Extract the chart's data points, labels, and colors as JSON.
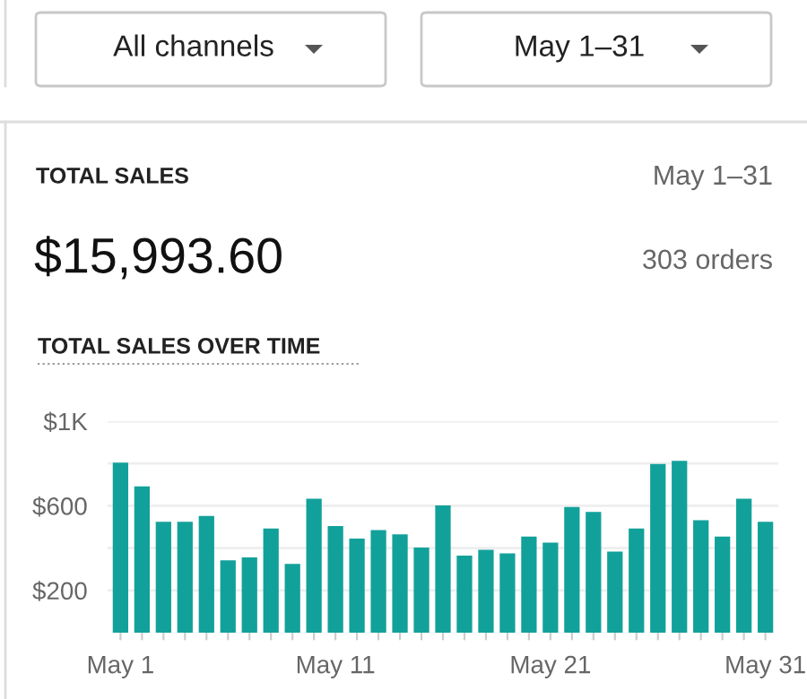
{
  "chart_data": {
    "type": "bar",
    "title": "TOTAL SALES OVER TIME",
    "annotations": [
      "All channels",
      "May 1–31",
      "TOTAL SALES",
      "May 1–31",
      "$15,993.60",
      "303 orders"
    ],
    "categories": [
      "May 1",
      null,
      null,
      null,
      null,
      null,
      null,
      null,
      null,
      null,
      "May 11",
      null,
      null,
      null,
      null,
      null,
      null,
      null,
      null,
      null,
      "May 21",
      null,
      null,
      null,
      null,
      null,
      null,
      null,
      null,
      null,
      "May 31"
    ],
    "values": [
      804,
      692,
      524,
      524,
      552,
      342,
      356,
      493,
      325,
      633,
      504,
      445,
      485,
      465,
      403,
      602,
      364,
      392,
      375,
      454,
      426,
      594,
      571,
      384,
      493,
      798,
      812,
      532,
      454,
      633,
      524
    ],
    "color": "#12a19a",
    "ylim": [
      0,
      1000
    ],
    "yticks": [
      {
        "value": 200,
        "label": "$200"
      },
      {
        "value": 400,
        "label": null
      },
      {
        "value": 600,
        "label": "$600"
      },
      {
        "value": 800,
        "label": null
      },
      {
        "value": 1000,
        "label": "$1K"
      }
    ],
    "grid": "y"
  }
}
